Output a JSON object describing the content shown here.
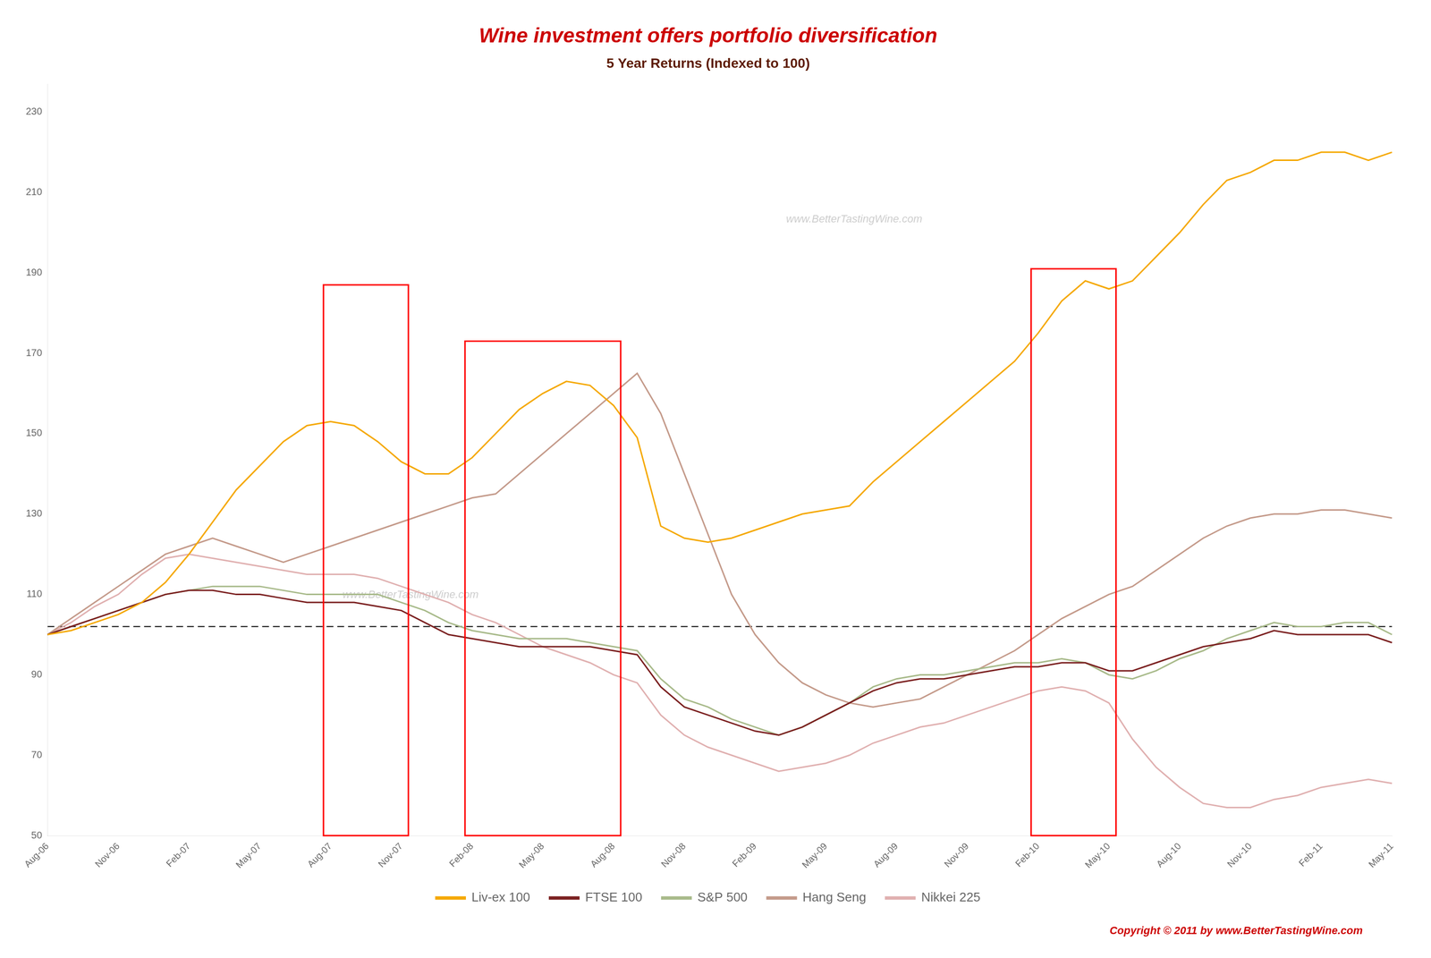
{
  "chart_data": {
    "type": "line",
    "title": "Wine investment offers portfolio diversification",
    "subtitle": "5 Year Returns (Indexed to 100)",
    "title_color": "#cc0000",
    "subtitle_color": "#5c1a00",
    "watermarks": [
      "www.BetterTastingWine.com",
      "www.BetterTastingWine.com"
    ],
    "copyright": "Copyright © 2011 by www.BetterTastingWine.com",
    "copyright_color": "#cc0000",
    "categories": [
      "Aug-06",
      null,
      null,
      "Nov-06",
      null,
      null,
      "Feb-07",
      null,
      null,
      "May-07",
      null,
      null,
      "Aug-07",
      null,
      null,
      "Nov-07",
      null,
      null,
      "Feb-08",
      null,
      null,
      "May-08",
      null,
      null,
      "Aug-08",
      null,
      null,
      "Nov-08",
      null,
      null,
      "Feb-09",
      null,
      null,
      "May-09",
      null,
      null,
      "Aug-09",
      null,
      null,
      "Nov-09",
      null,
      null,
      "Feb-10",
      null,
      null,
      "May-10",
      null,
      null,
      "Aug-10",
      null,
      null,
      "Nov-10",
      null,
      null,
      "Feb-11",
      null,
      null,
      "May-11"
    ],
    "series": [
      {
        "name": "Liv-ex 100",
        "color": "#f5a800",
        "values": [
          100,
          101,
          103,
          105,
          108,
          113,
          120,
          128,
          136,
          142,
          148,
          152,
          153,
          152,
          148,
          143,
          140,
          140,
          144,
          150,
          156,
          160,
          163,
          162,
          157,
          149,
          127,
          124,
          123,
          124,
          126,
          128,
          130,
          131,
          132,
          138,
          143,
          148,
          153,
          158,
          163,
          168,
          175,
          183,
          188,
          186,
          188,
          194,
          200,
          207,
          213,
          215,
          218,
          218,
          220,
          220,
          218,
          220
        ]
      },
      {
        "name": "FTSE 100",
        "color": "#7b2020",
        "values": [
          100,
          102,
          104,
          106,
          108,
          110,
          111,
          111,
          110,
          110,
          109,
          108,
          108,
          108,
          107,
          106,
          103,
          100,
          99,
          98,
          97,
          97,
          97,
          97,
          96,
          95,
          87,
          82,
          80,
          78,
          76,
          75,
          77,
          80,
          83,
          86,
          88,
          89,
          89,
          90,
          91,
          92,
          92,
          93,
          93,
          91,
          91,
          93,
          95,
          97,
          98,
          99,
          101,
          100,
          100,
          100,
          100,
          98
        ]
      },
      {
        "name": "S&P 500",
        "color": "#a8ba8a",
        "values": [
          100,
          102,
          104,
          106,
          108,
          110,
          111,
          112,
          112,
          112,
          111,
          110,
          110,
          110,
          110,
          108,
          106,
          103,
          101,
          100,
          99,
          99,
          99,
          98,
          97,
          96,
          89,
          84,
          82,
          79,
          77,
          75,
          77,
          80,
          83,
          87,
          89,
          90,
          90,
          91,
          92,
          93,
          93,
          94,
          93,
          90,
          89,
          91,
          94,
          96,
          99,
          101,
          103,
          102,
          102,
          103,
          103,
          100
        ]
      },
      {
        "name": "Hang Seng",
        "color": "#c49a8a",
        "values": [
          100,
          104,
          108,
          112,
          116,
          120,
          122,
          124,
          122,
          120,
          118,
          120,
          122,
          124,
          126,
          128,
          130,
          132,
          134,
          135,
          140,
          145,
          150,
          155,
          160,
          165,
          155,
          140,
          125,
          110,
          100,
          93,
          88,
          85,
          83,
          82,
          83,
          84,
          87,
          90,
          93,
          96,
          100,
          104,
          107,
          110,
          112,
          116,
          120,
          124,
          127,
          129,
          130,
          130,
          131,
          131,
          130,
          129
        ]
      },
      {
        "name": "Nikkei 225",
        "color": "#e0b0b0",
        "values": [
          100,
          103,
          107,
          110,
          115,
          119,
          120,
          119,
          118,
          117,
          116,
          115,
          115,
          115,
          114,
          112,
          110,
          108,
          105,
          103,
          100,
          97,
          95,
          93,
          90,
          88,
          80,
          75,
          72,
          70,
          68,
          66,
          67,
          68,
          70,
          73,
          75,
          77,
          78,
          80,
          82,
          84,
          86,
          87,
          86,
          83,
          74,
          67,
          62,
          58,
          57,
          57,
          59,
          60,
          62,
          63,
          64,
          63
        ]
      }
    ],
    "ylim": [
      50,
      237
    ],
    "yticks": [
      50,
      70,
      90,
      110,
      130,
      150,
      170,
      190,
      210,
      230
    ],
    "grid": false,
    "legend": "bottom",
    "reference_lines": [
      {
        "y": 102,
        "color": "black",
        "line_style": "dashed"
      }
    ],
    "highlight_boxes": [
      {
        "from": "Aug-07",
        "to": "Nov-07",
        "ylim": [
          50,
          187
        ],
        "color": "red"
      },
      {
        "from": "Feb-08",
        "to": "Aug-08",
        "ylim": [
          50,
          173
        ],
        "color": "red"
      },
      {
        "from": "Feb-10",
        "to": "May-10",
        "ylim": [
          50,
          191
        ],
        "color": "red"
      }
    ]
  }
}
